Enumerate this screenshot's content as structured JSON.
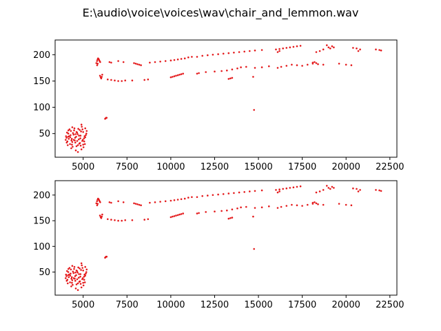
{
  "figure": {
    "title": "E:\\audio\\voice\\voices\\wav\\chair_and_lemmon.wav"
  },
  "chart_data": [
    {
      "type": "scatter",
      "panel": "top",
      "xlim": [
        3400,
        22900
      ],
      "ylim": [
        5,
        228
      ],
      "xticks": [
        5000,
        7500,
        10000,
        12500,
        15000,
        17500,
        20000,
        22500
      ],
      "xtick_labels": [
        "5000",
        "7500",
        "10000",
        "12500",
        "15000",
        "17500",
        "20000",
        "22500"
      ],
      "yticks": [
        50,
        100,
        150,
        200
      ],
      "ytick_labels": [
        "50",
        "100",
        "150",
        "200"
      ],
      "marker_color": "#e41a1c",
      "grid": false,
      "legend": "none",
      "series": [
        {
          "values": [
            [
              5750,
              184
            ],
            [
              5790,
              188
            ],
            [
              5820,
              191
            ],
            [
              5850,
              193
            ],
            [
              5880,
              192
            ],
            [
              5910,
              190
            ],
            [
              5940,
              188
            ],
            [
              5970,
              186
            ],
            [
              5800,
              180
            ],
            [
              5830,
              183
            ],
            [
              5960,
              160
            ],
            [
              6000,
              157
            ],
            [
              6030,
              155
            ],
            [
              6060,
              158
            ],
            [
              6090,
              162
            ],
            [
              6250,
              78
            ],
            [
              6280,
              79
            ],
            [
              6310,
              80
            ],
            [
              6340,
              80
            ],
            [
              6500,
              186
            ],
            [
              6600,
              185
            ],
            [
              6800,
              151
            ],
            [
              7000,
              150
            ],
            [
              7200,
              150
            ],
            [
              7400,
              151
            ],
            [
              6400,
              153
            ],
            [
              6600,
              152
            ],
            [
              7000,
              188
            ],
            [
              7300,
              186
            ],
            [
              7900,
              184
            ],
            [
              8000,
              183
            ],
            [
              8100,
              182
            ],
            [
              8200,
              181
            ],
            [
              8300,
              180
            ],
            [
              7800,
              151
            ],
            [
              8500,
              152
            ],
            [
              8700,
              153
            ],
            [
              8800,
              185
            ],
            [
              9100,
              186
            ],
            [
              9400,
              187
            ],
            [
              9700,
              188
            ],
            [
              10000,
              189
            ],
            [
              10200,
              190
            ],
            [
              10400,
              191
            ],
            [
              10600,
              192
            ],
            [
              10800,
              193
            ],
            [
              11000,
              195
            ],
            [
              11200,
              196
            ],
            [
              10000,
              157
            ],
            [
              10100,
              158
            ],
            [
              10200,
              159
            ],
            [
              10300,
              160
            ],
            [
              10400,
              161
            ],
            [
              10500,
              162
            ],
            [
              10600,
              163
            ],
            [
              10700,
              164
            ],
            [
              11500,
              196
            ],
            [
              11800,
              198
            ],
            [
              12100,
              199
            ],
            [
              12400,
              200
            ],
            [
              12700,
              201
            ],
            [
              13000,
              202
            ],
            [
              13300,
              203
            ],
            [
              13600,
              204
            ],
            [
              13900,
              205
            ],
            [
              14200,
              206
            ],
            [
              14500,
              207
            ],
            [
              14800,
              208
            ],
            [
              15200,
              209
            ],
            [
              11500,
              164
            ],
            [
              11600,
              165
            ],
            [
              12000,
              167
            ],
            [
              12500,
              168
            ],
            [
              12900,
              169
            ],
            [
              13300,
              154
            ],
            [
              13400,
              155
            ],
            [
              13500,
              156
            ],
            [
              13200,
              170
            ],
            [
              13500,
              172
            ],
            [
              13800,
              174
            ],
            [
              14000,
              176
            ],
            [
              14300,
              177
            ],
            [
              14800,
              175
            ],
            [
              15200,
              176
            ],
            [
              15600,
              178
            ],
            [
              14700,
              158
            ],
            [
              14750,
              95
            ],
            [
              16000,
              210
            ],
            [
              16200,
              211
            ],
            [
              16400,
              212
            ],
            [
              16600,
              213
            ],
            [
              16800,
              214
            ],
            [
              17000,
              215
            ],
            [
              17200,
              216
            ],
            [
              17400,
              217
            ],
            [
              16100,
              205
            ],
            [
              16200,
              207
            ],
            [
              16100,
              175
            ],
            [
              16300,
              177
            ],
            [
              16600,
              179
            ],
            [
              16900,
              181
            ],
            [
              17200,
              180
            ],
            [
              17500,
              179
            ],
            [
              17800,
              181
            ],
            [
              18100,
              183
            ],
            [
              18400,
              182
            ],
            [
              18700,
              181
            ],
            [
              18300,
              205
            ],
            [
              18500,
              207
            ],
            [
              18700,
              210
            ],
            [
              18900,
              218
            ],
            [
              19100,
              212
            ],
            [
              19300,
              214
            ],
            [
              19000,
              214
            ],
            [
              19200,
              216
            ],
            [
              18100,
              185
            ],
            [
              18200,
              186
            ],
            [
              18300,
              184
            ],
            [
              19600,
              183
            ],
            [
              20000,
              181
            ],
            [
              20300,
              180
            ],
            [
              20400,
              213
            ],
            [
              20600,
              212
            ],
            [
              20800,
              210
            ],
            [
              20700,
              207
            ],
            [
              21700,
              210
            ],
            [
              21900,
              209
            ],
            [
              22000,
              208
            ]
          ]
        },
        {
          "values": [
            [
              4000,
              38
            ],
            [
              4050,
              42
            ],
            [
              4100,
              35
            ],
            [
              4150,
              50
            ],
            [
              4200,
              45
            ],
            [
              4250,
              30
            ],
            [
              4300,
              55
            ],
            [
              4350,
              40
            ],
            [
              4400,
              25
            ],
            [
              4450,
              48
            ],
            [
              4500,
              60
            ],
            [
              4550,
              33
            ],
            [
              4600,
              44
            ],
            [
              4650,
              52
            ],
            [
              4700,
              28
            ],
            [
              4750,
              39
            ],
            [
              4800,
              57
            ],
            [
              4850,
              46
            ],
            [
              4900,
              20
            ],
            [
              4950,
              36
            ],
            [
              5000,
              53
            ],
            [
              5050,
              41
            ],
            [
              5100,
              30
            ],
            [
              5150,
              47
            ],
            [
              5200,
              55
            ],
            [
              4020,
              45
            ],
            [
              4120,
              28
            ],
            [
              4220,
              58
            ],
            [
              4320,
              22
            ],
            [
              4420,
              51
            ],
            [
              4520,
              37
            ],
            [
              4620,
              26
            ],
            [
              4720,
              59
            ],
            [
              4820,
              32
            ],
            [
              4920,
              63
            ],
            [
              5020,
              24
            ],
            [
              5120,
              43
            ],
            [
              4080,
              52
            ],
            [
              4180,
              40
            ],
            [
              4280,
              47
            ],
            [
              4380,
              34
            ],
            [
              4480,
              56
            ],
            [
              4580,
              18
            ],
            [
              4680,
              49
            ],
            [
              4780,
              31
            ],
            [
              4880,
              54
            ],
            [
              4980,
              38
            ],
            [
              5080,
              45
            ],
            [
              5180,
              50
            ],
            [
              4060,
              33
            ],
            [
              4160,
              56
            ],
            [
              4260,
              43
            ],
            [
              4360,
              29
            ],
            [
              4460,
              38
            ],
            [
              4560,
              49
            ],
            [
              4660,
              36
            ],
            [
              4760,
              46
            ],
            [
              4860,
              27
            ],
            [
              4960,
              58
            ],
            [
              5060,
              35
            ],
            [
              4900,
              67
            ],
            [
              4700,
              15
            ],
            [
              5120,
              60
            ],
            [
              4380,
              62
            ],
            [
              4620,
              53
            ],
            [
              4840,
              41
            ],
            [
              5000,
              29
            ],
            [
              4140,
              44
            ],
            [
              4330,
              37
            ],
            [
              4540,
              42
            ]
          ]
        }
      ]
    },
    {
      "type": "scatter",
      "panel": "bottom",
      "xlim": [
        3400,
        22900
      ],
      "ylim": [
        5,
        228
      ],
      "xticks": [
        5000,
        7500,
        10000,
        12500,
        15000,
        17500,
        20000,
        22500
      ],
      "xtick_labels": [
        "5000",
        "7500",
        "10000",
        "12500",
        "15000",
        "17500",
        "20000",
        "22500"
      ],
      "yticks": [
        50,
        100,
        150,
        200
      ],
      "ytick_labels": [
        "50",
        "100",
        "150",
        "200"
      ],
      "marker_color": "#e41a1c",
      "grid": false,
      "legend": "none",
      "same_data_as": "top"
    }
  ]
}
